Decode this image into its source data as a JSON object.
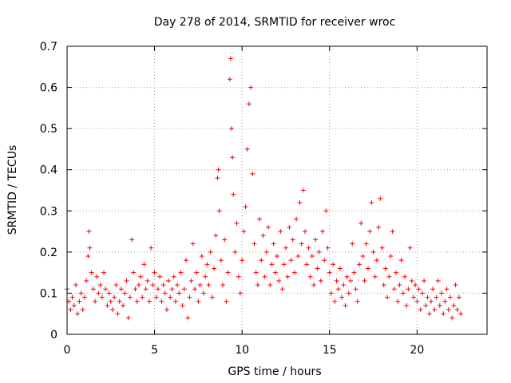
{
  "chart_data": {
    "type": "scatter",
    "title": "Day 278 of 2014, SRMTID for receiver wroc",
    "xlabel": "GPS time / hours",
    "ylabel": "SRMTID / TECUs",
    "xlim": [
      0,
      24
    ],
    "ylim": [
      0,
      0.7
    ],
    "xticks": [
      0,
      5,
      10,
      15,
      20
    ],
    "xtick_labels": [
      "0",
      "5",
      "10",
      "15",
      "20"
    ],
    "yticks": [
      0,
      0.1,
      0.2,
      0.3,
      0.4,
      0.5,
      0.6,
      0.7
    ],
    "ytick_labels": [
      "0",
      "0.1",
      "0.2",
      "0.3",
      "0.4",
      "0.5",
      "0.6",
      "0.7"
    ],
    "grid": true,
    "marker": "+",
    "color": "#ff0000",
    "series": [
      {
        "name": "SRMTID",
        "points": [
          [
            0.0,
            0.11
          ],
          [
            0.1,
            0.08
          ],
          [
            0.2,
            0.06
          ],
          [
            0.3,
            0.09
          ],
          [
            0.4,
            0.07
          ],
          [
            0.5,
            0.12
          ],
          [
            0.6,
            0.05
          ],
          [
            0.7,
            0.08
          ],
          [
            0.8,
            0.1
          ],
          [
            0.9,
            0.06
          ],
          [
            1.0,
            0.09
          ],
          [
            1.1,
            0.13
          ],
          [
            1.2,
            0.19
          ],
          [
            1.25,
            0.25
          ],
          [
            1.3,
            0.21
          ],
          [
            1.4,
            0.15
          ],
          [
            1.5,
            0.11
          ],
          [
            1.6,
            0.08
          ],
          [
            1.7,
            0.14
          ],
          [
            1.8,
            0.1
          ],
          [
            1.9,
            0.12
          ],
          [
            2.0,
            0.09
          ],
          [
            2.1,
            0.15
          ],
          [
            2.2,
            0.11
          ],
          [
            2.3,
            0.07
          ],
          [
            2.4,
            0.1
          ],
          [
            2.5,
            0.08
          ],
          [
            2.6,
            0.06
          ],
          [
            2.7,
            0.09
          ],
          [
            2.8,
            0.12
          ],
          [
            2.9,
            0.05
          ],
          [
            3.0,
            0.08
          ],
          [
            3.1,
            0.11
          ],
          [
            3.2,
            0.07
          ],
          [
            3.3,
            0.1
          ],
          [
            3.4,
            0.13
          ],
          [
            3.5,
            0.04
          ],
          [
            3.6,
            0.09
          ],
          [
            3.7,
            0.23
          ],
          [
            3.8,
            0.15
          ],
          [
            3.9,
            0.11
          ],
          [
            4.0,
            0.08
          ],
          [
            4.1,
            0.12
          ],
          [
            4.2,
            0.14
          ],
          [
            4.3,
            0.09
          ],
          [
            4.4,
            0.17
          ],
          [
            4.5,
            0.11
          ],
          [
            4.6,
            0.13
          ],
          [
            4.7,
            0.08
          ],
          [
            4.8,
            0.21
          ],
          [
            4.9,
            0.12
          ],
          [
            5.0,
            0.15
          ],
          [
            5.1,
            0.09
          ],
          [
            5.2,
            0.11
          ],
          [
            5.3,
            0.14
          ],
          [
            5.4,
            0.08
          ],
          [
            5.5,
            0.12
          ],
          [
            5.6,
            0.1
          ],
          [
            5.7,
            0.06
          ],
          [
            5.8,
            0.13
          ],
          [
            5.9,
            0.09
          ],
          [
            6.0,
            0.11
          ],
          [
            6.1,
            0.14
          ],
          [
            6.2,
            0.08
          ],
          [
            6.3,
            0.12
          ],
          [
            6.4,
            0.1
          ],
          [
            6.5,
            0.15
          ],
          [
            6.6,
            0.07
          ],
          [
            6.7,
            0.11
          ],
          [
            6.8,
            0.18
          ],
          [
            6.9,
            0.04
          ],
          [
            7.0,
            0.09
          ],
          [
            7.1,
            0.13
          ],
          [
            7.2,
            0.22
          ],
          [
            7.3,
            0.11
          ],
          [
            7.4,
            0.15
          ],
          [
            7.5,
            0.08
          ],
          [
            7.6,
            0.12
          ],
          [
            7.7,
            0.19
          ],
          [
            7.8,
            0.1
          ],
          [
            7.9,
            0.14
          ],
          [
            8.0,
            0.17
          ],
          [
            8.1,
            0.12
          ],
          [
            8.2,
            0.2
          ],
          [
            8.3,
            0.09
          ],
          [
            8.4,
            0.16
          ],
          [
            8.5,
            0.24
          ],
          [
            8.6,
            0.38
          ],
          [
            8.65,
            0.4
          ],
          [
            8.7,
            0.3
          ],
          [
            8.8,
            0.18
          ],
          [
            8.9,
            0.12
          ],
          [
            9.0,
            0.23
          ],
          [
            9.1,
            0.08
          ],
          [
            9.2,
            0.15
          ],
          [
            9.3,
            0.62
          ],
          [
            9.35,
            0.67
          ],
          [
            9.4,
            0.5
          ],
          [
            9.45,
            0.43
          ],
          [
            9.5,
            0.34
          ],
          [
            9.6,
            0.2
          ],
          [
            9.7,
            0.27
          ],
          [
            9.8,
            0.14
          ],
          [
            9.9,
            0.1
          ],
          [
            10.0,
            0.18
          ],
          [
            10.1,
            0.25
          ],
          [
            10.2,
            0.31
          ],
          [
            10.3,
            0.45
          ],
          [
            10.4,
            0.56
          ],
          [
            10.5,
            0.6
          ],
          [
            10.6,
            0.39
          ],
          [
            10.7,
            0.22
          ],
          [
            10.8,
            0.15
          ],
          [
            10.9,
            0.12
          ],
          [
            11.0,
            0.28
          ],
          [
            11.1,
            0.18
          ],
          [
            11.2,
            0.24
          ],
          [
            11.3,
            0.14
          ],
          [
            11.4,
            0.2
          ],
          [
            11.5,
            0.26
          ],
          [
            11.6,
            0.12
          ],
          [
            11.7,
            0.17
          ],
          [
            11.8,
            0.22
          ],
          [
            11.9,
            0.15
          ],
          [
            12.0,
            0.19
          ],
          [
            12.1,
            0.13
          ],
          [
            12.2,
            0.25
          ],
          [
            12.3,
            0.11
          ],
          [
            12.4,
            0.17
          ],
          [
            12.5,
            0.21
          ],
          [
            12.6,
            0.14
          ],
          [
            12.7,
            0.26
          ],
          [
            12.8,
            0.18
          ],
          [
            12.9,
            0.23
          ],
          [
            13.0,
            0.15
          ],
          [
            13.1,
            0.28
          ],
          [
            13.2,
            0.19
          ],
          [
            13.3,
            0.32
          ],
          [
            13.4,
            0.22
          ],
          [
            13.5,
            0.35
          ],
          [
            13.6,
            0.25
          ],
          [
            13.7,
            0.17
          ],
          [
            13.8,
            0.21
          ],
          [
            13.9,
            0.14
          ],
          [
            14.0,
            0.19
          ],
          [
            14.1,
            0.12
          ],
          [
            14.2,
            0.23
          ],
          [
            14.3,
            0.16
          ],
          [
            14.4,
            0.2
          ],
          [
            14.5,
            0.13
          ],
          [
            14.6,
            0.25
          ],
          [
            14.7,
            0.18
          ],
          [
            14.8,
            0.3
          ],
          [
            14.9,
            0.21
          ],
          [
            15.0,
            0.15
          ],
          [
            15.1,
            0.1
          ],
          [
            15.2,
            0.17
          ],
          [
            15.3,
            0.08
          ],
          [
            15.4,
            0.13
          ],
          [
            15.5,
            0.11
          ],
          [
            15.6,
            0.16
          ],
          [
            15.7,
            0.09
          ],
          [
            15.8,
            0.12
          ],
          [
            15.9,
            0.07
          ],
          [
            16.0,
            0.14
          ],
          [
            16.1,
            0.1
          ],
          [
            16.2,
            0.13
          ],
          [
            16.3,
            0.22
          ],
          [
            16.4,
            0.15
          ],
          [
            16.5,
            0.11
          ],
          [
            16.6,
            0.08
          ],
          [
            16.7,
            0.17
          ],
          [
            16.8,
            0.27
          ],
          [
            16.9,
            0.19
          ],
          [
            17.0,
            0.13
          ],
          [
            17.1,
            0.22
          ],
          [
            17.2,
            0.16
          ],
          [
            17.3,
            0.25
          ],
          [
            17.4,
            0.32
          ],
          [
            17.5,
            0.2
          ],
          [
            17.6,
            0.14
          ],
          [
            17.7,
            0.18
          ],
          [
            17.8,
            0.26
          ],
          [
            17.9,
            0.33
          ],
          [
            18.0,
            0.21
          ],
          [
            18.1,
            0.12
          ],
          [
            18.2,
            0.16
          ],
          [
            18.3,
            0.09
          ],
          [
            18.4,
            0.14
          ],
          [
            18.5,
            0.19
          ],
          [
            18.6,
            0.25
          ],
          [
            18.7,
            0.11
          ],
          [
            18.8,
            0.15
          ],
          [
            18.9,
            0.08
          ],
          [
            19.0,
            0.12
          ],
          [
            19.1,
            0.18
          ],
          [
            19.2,
            0.1
          ],
          [
            19.3,
            0.14
          ],
          [
            19.4,
            0.07
          ],
          [
            19.5,
            0.11
          ],
          [
            19.6,
            0.21
          ],
          [
            19.7,
            0.13
          ],
          [
            19.8,
            0.09
          ],
          [
            19.9,
            0.12
          ],
          [
            20.0,
            0.08
          ],
          [
            20.1,
            0.11
          ],
          [
            20.2,
            0.06
          ],
          [
            20.3,
            0.1
          ],
          [
            20.4,
            0.13
          ],
          [
            20.5,
            0.07
          ],
          [
            20.6,
            0.09
          ],
          [
            20.7,
            0.05
          ],
          [
            20.8,
            0.08
          ],
          [
            20.9,
            0.11
          ],
          [
            21.0,
            0.06
          ],
          [
            21.1,
            0.09
          ],
          [
            21.2,
            0.13
          ],
          [
            21.3,
            0.07
          ],
          [
            21.4,
            0.1
          ],
          [
            21.5,
            0.05
          ],
          [
            21.6,
            0.08
          ],
          [
            21.7,
            0.11
          ],
          [
            21.8,
            0.06
          ],
          [
            21.9,
            0.09
          ],
          [
            22.0,
            0.04
          ],
          [
            22.1,
            0.07
          ],
          [
            22.2,
            0.12
          ],
          [
            22.3,
            0.06
          ],
          [
            22.4,
            0.09
          ],
          [
            22.5,
            0.05
          ]
        ]
      }
    ]
  }
}
